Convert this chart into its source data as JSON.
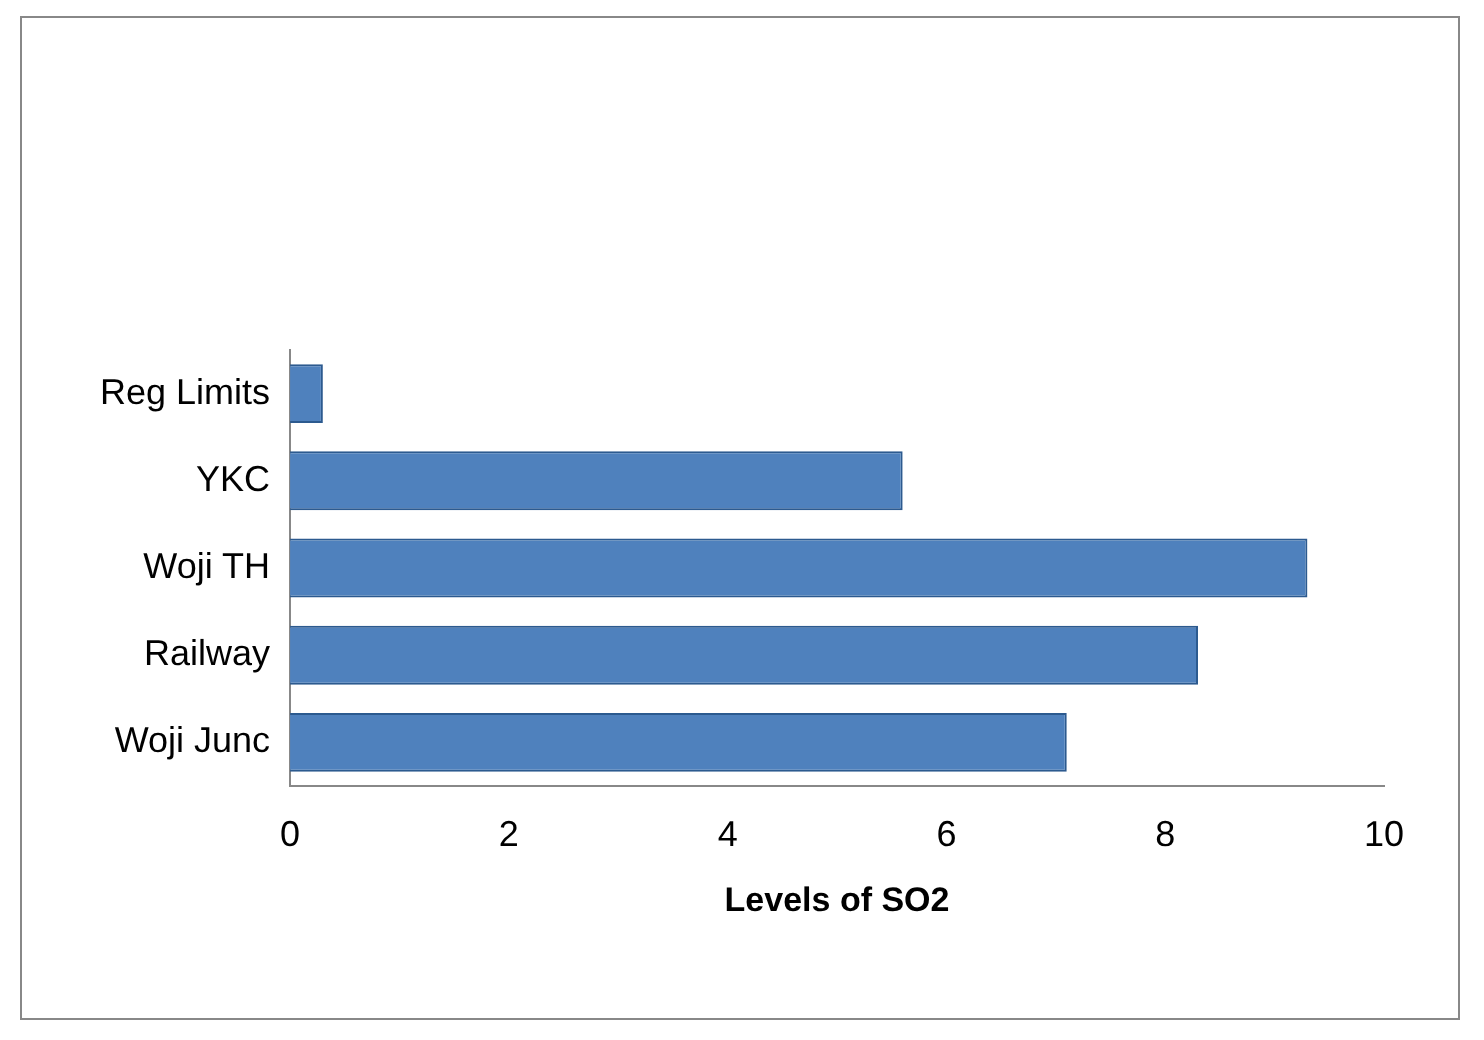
{
  "chart_data": {
    "type": "bar",
    "orientation": "horizontal",
    "xlabel": "Levels of SO2",
    "categories": [
      "Reg Limits",
      "YKC",
      "Woji TH",
      "Railway",
      "Woji Junc"
    ],
    "values": [
      0.3,
      5.6,
      9.3,
      8.3,
      7.1
    ],
    "color": "#4f81bd",
    "xlim": [
      0,
      10
    ],
    "xticks": [
      0,
      2,
      4,
      6,
      8,
      10
    ],
    "grid": false,
    "legend": false
  }
}
